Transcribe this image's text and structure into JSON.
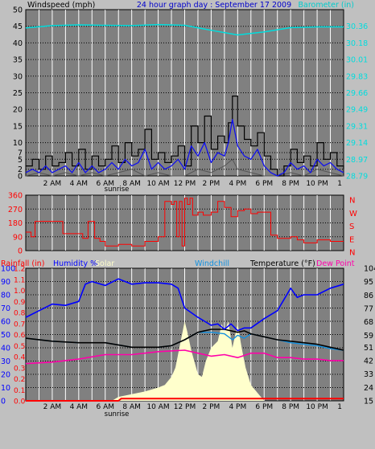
{
  "colors": {
    "page_bg": "#c0c0c0",
    "plot_bg": "#808080",
    "grid": "#ffffff",
    "title": "#0000cc",
    "wind_text": "#000000",
    "barometer": "#00dddd",
    "gust": "#000000",
    "wind_avg": "#1010ee",
    "wind_low": "#555555",
    "direction": "#ff0000",
    "rain": "#ff0000",
    "humidity": "#0000ff",
    "solar": "#ffffcc",
    "windchill": "#1090e0",
    "temperature": "#000000",
    "dewpoint": "#ff00aa"
  },
  "chart_data": [
    {
      "type": "line",
      "panel": "wind",
      "title": "24 hour graph day : September 17 2009",
      "ylabel_left": "Windspeed (mph)",
      "ylabel_right": "Barometer (in)",
      "x_ticks": [
        "2 AM",
        "4 AM",
        "6 AM",
        "8 AM",
        "10 AM",
        "12 PM",
        "2 PM",
        "4 PM",
        "6 PM",
        "8 PM",
        "10 PM",
        "1"
      ],
      "x_range_hours": [
        0,
        24
      ],
      "y_left_ticks": [
        0,
        2,
        5,
        7,
        10,
        15,
        20,
        25,
        30,
        35,
        40,
        45,
        50
      ],
      "y_right_ticks": [
        "28.79",
        "28.97",
        "29.14",
        "29.31",
        "29.49",
        "29.66",
        "29.83",
        "30.01",
        "30.18",
        "30.36"
      ],
      "y_left_range": [
        0,
        50
      ],
      "annotations": [
        "sunrise"
      ],
      "series": [
        {
          "key": "barometer",
          "values_hours": [
            0,
            2,
            4,
            6,
            8,
            10,
            12,
            14,
            16,
            18,
            20,
            22,
            24
          ],
          "values": [
            44.5,
            45.2,
            45.4,
            45.3,
            45.2,
            45.5,
            45.3,
            43.8,
            42.4,
            43.3,
            44.6,
            44.8,
            44.8
          ]
        },
        {
          "key": "gust",
          "values_hours": [
            0,
            0.5,
            1,
            1.5,
            2,
            2.5,
            3,
            3.5,
            4,
            4.5,
            5,
            5.5,
            6,
            6.5,
            7,
            7.5,
            8,
            8.5,
            9,
            9.5,
            10,
            10.5,
            11,
            11.5,
            12,
            12.5,
            13,
            13.5,
            14,
            14.5,
            15,
            15.3,
            15.6,
            16,
            16.5,
            17,
            17.5,
            18,
            18.5,
            19,
            19.5,
            20,
            20.5,
            21,
            21.5,
            22,
            22.5,
            23,
            23.5,
            24
          ],
          "values": [
            3,
            5,
            2,
            6,
            3,
            4,
            7,
            3,
            8,
            2,
            6,
            3,
            5,
            9,
            4,
            10,
            6,
            8,
            14,
            5,
            7,
            4,
            6,
            9,
            3,
            15,
            10,
            18,
            8,
            12,
            10,
            16,
            24,
            15,
            11,
            9,
            13,
            6,
            2,
            0,
            3,
            8,
            4,
            6,
            3,
            10,
            5,
            7,
            3,
            2
          ]
        },
        {
          "key": "wind_avg",
          "values_hours": [
            0,
            0.5,
            1,
            1.5,
            2,
            2.5,
            3,
            3.5,
            4,
            4.5,
            5,
            5.5,
            6,
            6.5,
            7,
            7.5,
            8,
            8.5,
            9,
            9.5,
            10,
            10.5,
            11,
            11.5,
            12,
            12.5,
            13,
            13.5,
            14,
            14.5,
            15,
            15.3,
            15.6,
            16,
            16.5,
            17,
            17.5,
            18,
            18.5,
            19,
            19.5,
            20,
            20.5,
            21,
            21.5,
            22,
            22.5,
            23,
            23.5,
            24
          ],
          "values": [
            1,
            2,
            1,
            3,
            1,
            2,
            3,
            1,
            4,
            1,
            3,
            1,
            2,
            4,
            2,
            5,
            3,
            4,
            8,
            2,
            4,
            2,
            3,
            5,
            2,
            9,
            6,
            10,
            4,
            7,
            6,
            10,
            17,
            9,
            6,
            5,
            8,
            3,
            1,
            0,
            1,
            4,
            2,
            3,
            1,
            5,
            3,
            4,
            2,
            1
          ]
        },
        {
          "key": "wind_low",
          "values_hours": [
            0,
            1,
            2,
            3,
            4,
            5,
            6,
            7,
            8,
            9,
            10,
            11,
            12,
            13,
            14,
            15,
            15.6,
            16,
            17,
            18,
            19,
            20,
            21,
            22,
            23,
            24
          ],
          "values": [
            0,
            1,
            0,
            1,
            0,
            1,
            0,
            1,
            2,
            0,
            1,
            0,
            0,
            2,
            1,
            3,
            5,
            2,
            1,
            0,
            0,
            1,
            0,
            2,
            1,
            0
          ]
        }
      ]
    },
    {
      "type": "line",
      "panel": "direction",
      "y_ticks": [
        0,
        90,
        180,
        270,
        360
      ],
      "y_right_labels": [
        "N",
        "W",
        "S",
        "E",
        "N"
      ],
      "x_range_hours": [
        0,
        24
      ],
      "series": [
        {
          "key": "direction",
          "values_hours": [
            0,
            0.4,
            0.7,
            2.5,
            2.8,
            3.5,
            4.3,
            4.7,
            5.2,
            5.6,
            6,
            7,
            8,
            9,
            10,
            10.5,
            11,
            11.2,
            11.4,
            11.6,
            11.8,
            12,
            12.2,
            12.4,
            12.6,
            13,
            13.4,
            14,
            14.5,
            15,
            15.5,
            16,
            16.5,
            17,
            17.5,
            18,
            18.5,
            19,
            19.5,
            20,
            20.5,
            21,
            22,
            23,
            24
          ],
          "values": [
            120,
            90,
            190,
            190,
            110,
            110,
            80,
            190,
            80,
            60,
            30,
            40,
            30,
            60,
            90,
            320,
            300,
            320,
            90,
            320,
            30,
            340,
            300,
            340,
            230,
            250,
            230,
            250,
            320,
            280,
            220,
            260,
            270,
            240,
            250,
            250,
            100,
            80,
            80,
            90,
            70,
            50,
            70,
            60,
            60
          ]
        }
      ]
    },
    {
      "type": "line",
      "panel": "climate",
      "legend": [
        "Rainfall (in)",
        "Humidity %",
        "Solar",
        "Windchill",
        "Temperature (°F)",
        "Dew Point"
      ],
      "y_left_humidity_ticks": [
        0,
        10,
        20,
        30,
        40,
        50,
        60,
        70,
        80,
        90,
        100
      ],
      "y_left_rain_ticks": [
        "0.0",
        "0.1",
        "0.2",
        "0.3",
        "0.4",
        "0.5",
        "0.6",
        "0.7",
        "0.8",
        "0.9",
        "1.0",
        "1.1",
        "1.2"
      ],
      "y_right_temp_ticks": [
        15,
        24,
        33,
        42,
        51,
        59,
        68,
        77,
        86,
        95,
        104
      ],
      "x_ticks": [
        "2 AM",
        "4 AM",
        "6 AM",
        "8 AM",
        "10 AM",
        "12 PM",
        "2 PM",
        "4 PM",
        "6 PM",
        "8 PM",
        "10 PM",
        "1"
      ],
      "x_range_hours": [
        0,
        24
      ],
      "annotations": [
        "sunrise"
      ],
      "series": [
        {
          "key": "humidity",
          "values_hours": [
            0,
            1,
            2,
            3,
            4,
            4.5,
            5,
            6,
            7,
            8,
            9,
            10,
            11,
            11.5,
            12,
            13,
            14,
            14.5,
            15,
            15.5,
            16,
            16.5,
            17,
            18,
            19,
            20,
            20.5,
            21,
            22,
            23,
            24
          ],
          "values": [
            63,
            68,
            73,
            72,
            75,
            88,
            90,
            87,
            92,
            88,
            89,
            89,
            88,
            85,
            70,
            63,
            57,
            58,
            54,
            58,
            53,
            55,
            55,
            62,
            68,
            85,
            78,
            80,
            80,
            85,
            88
          ]
        },
        {
          "key": "temperature",
          "values_hours": [
            0,
            2,
            4,
            6,
            8,
            10,
            11,
            12,
            13,
            14,
            15,
            16,
            16.5,
            17,
            18,
            19,
            20,
            21,
            22,
            23,
            24
          ],
          "values": [
            57,
            55,
            54,
            54,
            51,
            51,
            52,
            56,
            61,
            63,
            63,
            61,
            62,
            60,
            58,
            56,
            55,
            54,
            53,
            51,
            49
          ]
        },
        {
          "key": "windchill",
          "values_hours": [
            0,
            2,
            4,
            6,
            8,
            10,
            11,
            12,
            13,
            14,
            15,
            15.6,
            16,
            16.5,
            17,
            18,
            19,
            20,
            21,
            22,
            23,
            24
          ],
          "values": [
            57,
            55,
            54,
            54,
            51,
            51,
            52,
            56,
            61,
            61,
            60,
            56,
            59,
            57,
            60,
            58,
            56,
            54,
            53,
            52,
            50,
            49
          ]
        },
        {
          "key": "dewpoint",
          "values_hours": [
            0,
            2,
            4,
            6,
            8,
            10,
            12,
            13,
            14,
            15,
            16,
            17,
            18,
            19,
            20,
            21,
            22,
            23,
            24
          ],
          "values": [
            40,
            41,
            43,
            46,
            46,
            48,
            49,
            47,
            45,
            46,
            44,
            47,
            47,
            44,
            44,
            43,
            43,
            42,
            42
          ]
        },
        {
          "key": "solar",
          "values_hours": [
            0,
            6.5,
            7,
            8,
            9,
            10,
            10.5,
            11,
            11.3,
            11.6,
            12,
            12.2,
            12.5,
            13,
            13.3,
            13.6,
            14,
            14.5,
            14.8,
            15,
            15.3,
            15.6,
            16,
            16.3,
            16.6,
            17,
            17.5,
            18,
            24
          ],
          "values": [
            0,
            0,
            3,
            5,
            7,
            10,
            12,
            18,
            25,
            40,
            60,
            52,
            38,
            20,
            18,
            30,
            40,
            45,
            58,
            52,
            60,
            40,
            58,
            40,
            25,
            12,
            6,
            0,
            0
          ]
        },
        {
          "key": "rain",
          "values_hours": [
            0,
            7,
            7.2,
            24
          ],
          "values": [
            0,
            0,
            0.02,
            0.02
          ]
        }
      ]
    }
  ]
}
